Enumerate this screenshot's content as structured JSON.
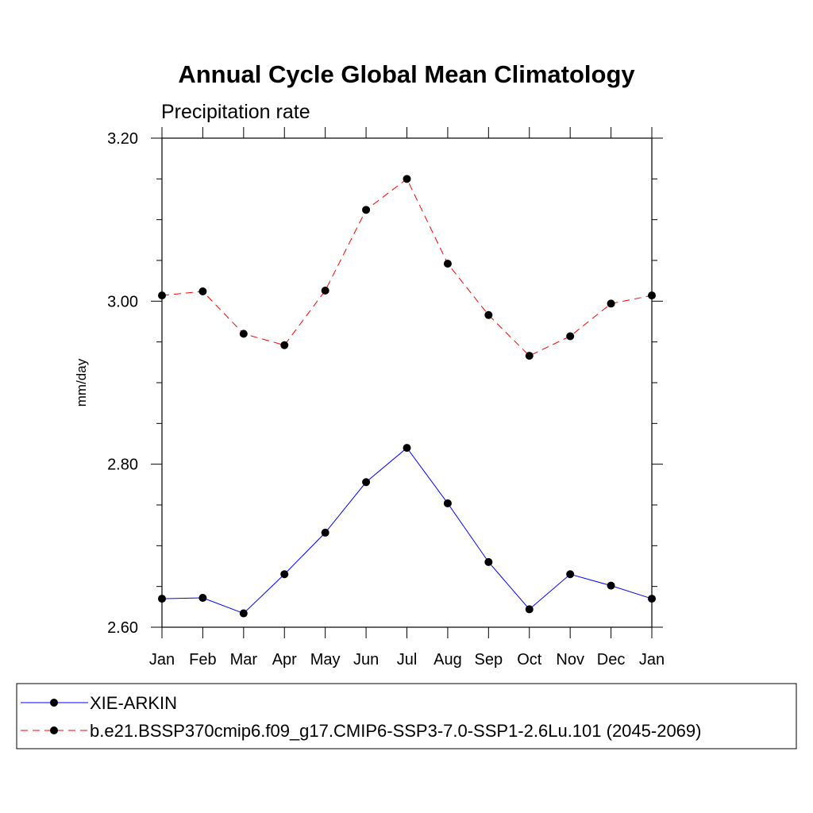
{
  "chart_data": {
    "type": "line",
    "title": "Annual Cycle Global Mean Climatology",
    "subtitle": "Precipitation rate",
    "ylabel": "mm/day",
    "xlabel": "",
    "categories": [
      "Jan",
      "Feb",
      "Mar",
      "Apr",
      "May",
      "Jun",
      "Jul",
      "Aug",
      "Sep",
      "Oct",
      "Nov",
      "Dec",
      "Jan"
    ],
    "ylim": [
      2.6,
      3.2
    ],
    "yticks": [
      2.6,
      2.8,
      3.0,
      3.2
    ],
    "ytick_labels": [
      "2.60",
      "2.80",
      "3.00",
      "3.20"
    ],
    "grid": false,
    "legend_position": "bottom",
    "series": [
      {
        "name": "XIE-ARKIN",
        "style": "solid",
        "color": "#0000ff",
        "marker_color": "#000000",
        "values": [
          2.635,
          2.636,
          2.617,
          2.665,
          2.716,
          2.778,
          2.82,
          2.752,
          2.68,
          2.622,
          2.665,
          2.651,
          2.635
        ]
      },
      {
        "name": "b.e21.BSSP370cmip6.f09_g17.CMIP6-SSP3-7.0-SSP1-2.6Lu.101 (2045-2069)",
        "style": "dashed",
        "color": "#ff0000",
        "marker_color": "#000000",
        "values": [
          3.007,
          3.012,
          2.96,
          2.946,
          3.013,
          3.112,
          3.15,
          3.046,
          2.983,
          2.933,
          2.957,
          2.997,
          3.007
        ]
      }
    ]
  }
}
